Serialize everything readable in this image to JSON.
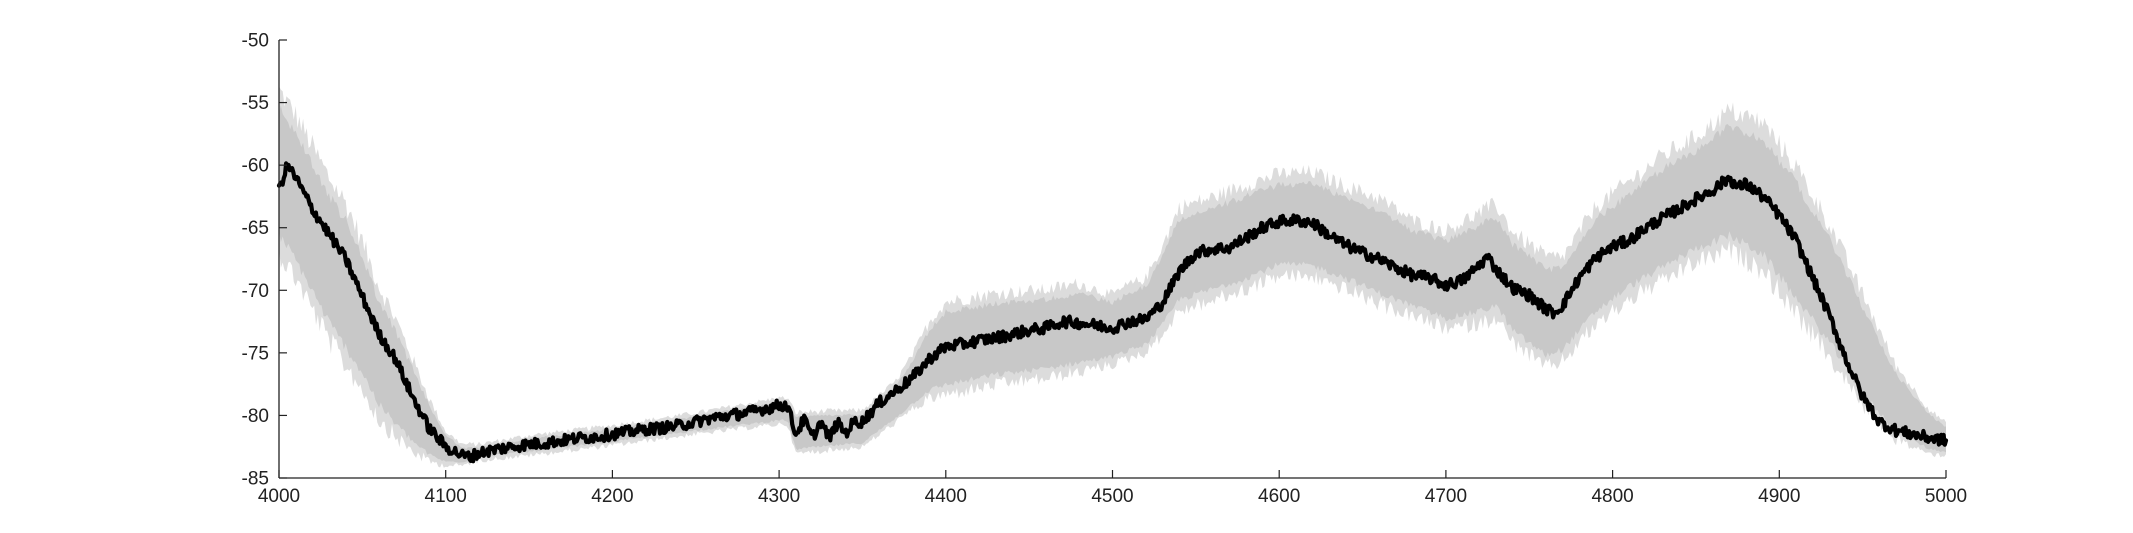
{
  "chart_data": {
    "type": "line",
    "title": "",
    "xlabel": "",
    "ylabel": "",
    "xlim": [
      4000,
      5000
    ],
    "ylim": [
      -85,
      -50
    ],
    "x_ticks": [
      4000,
      4100,
      4200,
      4300,
      4400,
      4500,
      4600,
      4700,
      4800,
      4900,
      5000
    ],
    "y_ticks": [
      -50,
      -55,
      -60,
      -65,
      -70,
      -75,
      -80,
      -85
    ],
    "x_tick_labels": [
      "4000",
      "4100",
      "4200",
      "4300",
      "4400",
      "4500",
      "4600",
      "4700",
      "4800",
      "4900",
      "5000"
    ],
    "y_tick_labels": [
      "-50",
      "-55",
      "-60",
      "-65",
      "-70",
      "-75",
      "-80",
      "-85"
    ],
    "grid": false,
    "legend": "none",
    "colors": {
      "mean_line": "#000000",
      "band_inner": "#c8c8c8",
      "band_outer": "#dcdcdc",
      "axes": "#222222"
    },
    "series": [
      {
        "role": "mean",
        "x": [
          4000,
          4005,
          4010,
          4020,
          4030,
          4040,
          4050,
          4060,
          4070,
          4080,
          4090,
          4100,
          4110,
          4115,
          4120,
          4130,
          4140,
          4150,
          4160,
          4170,
          4180,
          4190,
          4200,
          4210,
          4220,
          4230,
          4240,
          4250,
          4260,
          4270,
          4280,
          4290,
          4300,
          4305,
          4310,
          4315,
          4320,
          4325,
          4330,
          4335,
          4340,
          4345,
          4350,
          4360,
          4370,
          4380,
          4390,
          4400,
          4410,
          4420,
          4430,
          4440,
          4450,
          4460,
          4470,
          4480,
          4490,
          4500,
          4510,
          4520,
          4530,
          4540,
          4550,
          4560,
          4570,
          4580,
          4590,
          4600,
          4610,
          4620,
          4630,
          4640,
          4650,
          4660,
          4670,
          4680,
          4690,
          4700,
          4710,
          4720,
          4725,
          4730,
          4740,
          4750,
          4760,
          4765,
          4770,
          4780,
          4790,
          4800,
          4810,
          4820,
          4830,
          4840,
          4850,
          4860,
          4870,
          4875,
          4880,
          4890,
          4900,
          4910,
          4920,
          4930,
          4940,
          4950,
          4960,
          4970,
          4980,
          4990,
          5000
        ],
        "y": [
          -62,
          -60,
          -61,
          -63.5,
          -65.5,
          -67.5,
          -70.5,
          -73.5,
          -75.5,
          -78.5,
          -81,
          -82.5,
          -83.2,
          -83.3,
          -83,
          -82.7,
          -82.5,
          -82.3,
          -82.2,
          -82,
          -81.8,
          -81.7,
          -81.5,
          -81.3,
          -81.1,
          -81,
          -80.8,
          -80.5,
          -80.2,
          -80,
          -79.8,
          -79.5,
          -79.2,
          -79.2,
          -81.5,
          -80.3,
          -81.8,
          -80.5,
          -81.8,
          -80.6,
          -81.4,
          -80.5,
          -80.5,
          -79,
          -78,
          -77,
          -75.5,
          -74.5,
          -74.3,
          -74,
          -73.8,
          -73.5,
          -73.2,
          -73,
          -72.5,
          -72.6,
          -72.8,
          -73,
          -72.5,
          -72.3,
          -71,
          -68.5,
          -67,
          -66.7,
          -66.6,
          -65.8,
          -65,
          -64.5,
          -64.4,
          -64.6,
          -65.6,
          -66.4,
          -67,
          -67.5,
          -68.2,
          -68.8,
          -69,
          -69.6,
          -69.2,
          -68,
          -67.3,
          -68.3,
          -69.8,
          -70.4,
          -71.5,
          -71.8,
          -71.2,
          -69,
          -67.4,
          -66.5,
          -66,
          -65,
          -64.2,
          -63.5,
          -62.7,
          -62,
          -61,
          -61.8,
          -61.5,
          -62.5,
          -64,
          -66,
          -69,
          -72,
          -75.5,
          -78.5,
          -80.5,
          -81.2,
          -81.5,
          -81.8,
          -82
        ]
      },
      {
        "role": "upper-bound",
        "x": [
          4000,
          4010,
          4020,
          4030,
          4040,
          4050,
          4060,
          4070,
          4080,
          4090,
          4100,
          4110,
          4120,
          4150,
          4200,
          4250,
          4300,
          4305,
          4310,
          4350,
          4370,
          4380,
          4390,
          4400,
          4430,
          4460,
          4480,
          4500,
          4510,
          4520,
          4530,
          4540,
          4560,
          4580,
          4600,
          4620,
          4640,
          4660,
          4680,
          4700,
          4720,
          4730,
          4740,
          4760,
          4770,
          4790,
          4810,
          4830,
          4850,
          4870,
          4890,
          4910,
          4930,
          4950,
          4970,
          4990,
          5000
        ],
        "y": [
          -55,
          -57,
          -59.5,
          -62,
          -64,
          -67,
          -70.5,
          -73,
          -76,
          -79,
          -81.5,
          -82.5,
          -82.5,
          -81.8,
          -81,
          -80,
          -78.8,
          -78.8,
          -80,
          -79.8,
          -77.5,
          -75.5,
          -73,
          -71.5,
          -70.8,
          -70.5,
          -70,
          -70.8,
          -70,
          -69.5,
          -67,
          -64,
          -63.2,
          -62.2,
          -61.3,
          -61.2,
          -62.3,
          -63.3,
          -65,
          -65.8,
          -64.5,
          -63.8,
          -66,
          -68,
          -68,
          -64,
          -62,
          -60,
          -58.5,
          -56.5,
          -57.5,
          -61,
          -65.5,
          -71,
          -76.5,
          -79.8,
          -80.8
        ]
      },
      {
        "role": "lower-bound",
        "x": [
          4000,
          4010,
          4020,
          4030,
          4040,
          4050,
          4060,
          4070,
          4080,
          4090,
          4100,
          4110,
          4120,
          4150,
          4200,
          4250,
          4300,
          4305,
          4310,
          4350,
          4370,
          4380,
          4390,
          4400,
          4430,
          4460,
          4480,
          4500,
          4510,
          4520,
          4530,
          4540,
          4560,
          4580,
          4600,
          4620,
          4640,
          4660,
          4680,
          4700,
          4720,
          4730,
          4740,
          4760,
          4770,
          4790,
          4810,
          4830,
          4850,
          4870,
          4890,
          4910,
          4930,
          4950,
          4970,
          4990,
          5000
        ],
        "y": [
          -66,
          -68,
          -70.5,
          -73,
          -75,
          -77,
          -79.5,
          -81,
          -82.3,
          -83.3,
          -83.8,
          -83.8,
          -83.4,
          -83,
          -82.2,
          -81.3,
          -80.5,
          -80.5,
          -82.8,
          -82.3,
          -80.3,
          -79.2,
          -78.2,
          -77.8,
          -77,
          -76.5,
          -76,
          -75.5,
          -75,
          -74.5,
          -73,
          -71,
          -70.2,
          -69.3,
          -68.2,
          -68.3,
          -69.3,
          -70.5,
          -71.5,
          -72.5,
          -72,
          -71.5,
          -73.5,
          -75.5,
          -75,
          -72,
          -70,
          -68.5,
          -67,
          -66,
          -67.5,
          -71,
          -74.5,
          -78.5,
          -81.5,
          -82.8,
          -83
        ]
      }
    ]
  }
}
